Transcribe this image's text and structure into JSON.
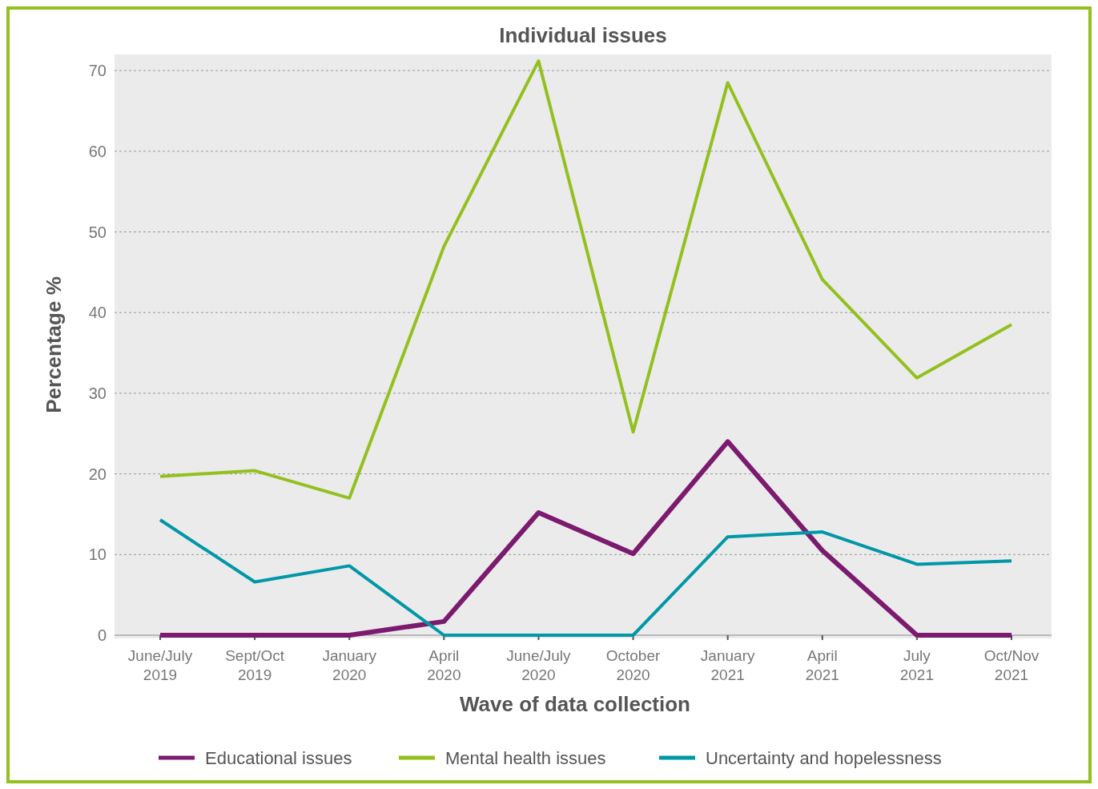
{
  "chart_data": {
    "type": "line",
    "title": "Individual issues",
    "xlabel": "Wave of data collection",
    "ylabel": "Percentage %",
    "categories": [
      "June/July\n2019",
      "Sept/Oct\n2019",
      "January\n2020",
      "April\n2020",
      "June/July\n2020",
      "October\n2020",
      "January\n2021",
      "April\n2021",
      "July\n2021",
      "Oct/Nov\n2021"
    ],
    "series": [
      {
        "name": "Educational issues",
        "color": "#7b1a6e",
        "values": [
          0,
          0,
          0,
          1.7,
          15.2,
          10.1,
          24,
          10.5,
          0,
          0
        ]
      },
      {
        "name": "Mental health issues",
        "color": "#93c01f",
        "values": [
          19.7,
          20.4,
          17,
          48.2,
          71.2,
          25.2,
          68.5,
          44.1,
          31.9,
          38.5
        ]
      },
      {
        "name": "Uncertainty and hopelessness",
        "color": "#0097a7",
        "values": [
          14.3,
          6.6,
          8.6,
          0,
          0,
          0,
          12.2,
          12.8,
          8.8,
          9.2
        ]
      }
    ],
    "ylim": [
      0,
      72
    ],
    "yticks": [
      0,
      10,
      20,
      30,
      40,
      50,
      60,
      70
    ],
    "grid": "y",
    "legend": "bottom",
    "marker": "none",
    "line_style": "solid"
  }
}
